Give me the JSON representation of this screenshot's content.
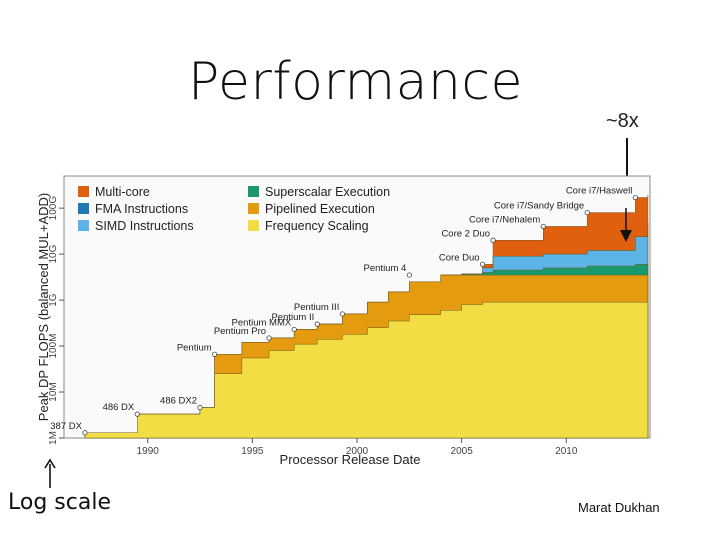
{
  "slide": {
    "title": "Performance",
    "callout": "~8x",
    "scale_note": "Log scale",
    "author": "Marat Dukhan"
  },
  "chart_data": {
    "type": "area",
    "stacked": true,
    "xlabel": "Processor Release Date",
    "ylabel": "Peak DP FLOPS (balanced MUL+ADD)",
    "y_scale": "log",
    "xlim": [
      1986,
      2014
    ],
    "ylim": [
      1000000,
      500000000000
    ],
    "x_ticks": [
      1990,
      1995,
      2000,
      2005,
      2010
    ],
    "y_ticks": [
      {
        "label": "1M",
        "value": 1000000
      },
      {
        "label": "10M",
        "value": 10000000
      },
      {
        "label": "100M",
        "value": 100000000
      },
      {
        "label": "1G",
        "value": 1000000000
      },
      {
        "label": "10G",
        "value": 10000000000
      },
      {
        "label": "100G",
        "value": 100000000000
      }
    ],
    "legend_position": "top-left",
    "legend": [
      {
        "name": "Multi-core",
        "color": "#e0600f"
      },
      {
        "name": "FMA Instructions",
        "color": "#1f78b4"
      },
      {
        "name": "SIMD Instructions",
        "color": "#5cb3e6"
      },
      {
        "name": "Superscalar Execution",
        "color": "#1a9a6c"
      },
      {
        "name": "Pipelined Execution",
        "color": "#e59b0f"
      },
      {
        "name": "Frequency Scaling",
        "color": "#f2dd44"
      }
    ],
    "annotations": [
      {
        "label": "387 DX",
        "x": 1987.0,
        "y": 1300000
      },
      {
        "label": "486 DX",
        "x": 1989.5,
        "y": 3300000
      },
      {
        "label": "486 DX2",
        "x": 1992.5,
        "y": 4600000
      },
      {
        "label": "Pentium",
        "x": 1993.2,
        "y": 66000000
      },
      {
        "label": "Pentium Pro",
        "x": 1995.8,
        "y": 150000000
      },
      {
        "label": "Pentium MMX",
        "x": 1997.0,
        "y": 230000000
      },
      {
        "label": "Pentium II",
        "x": 1998.1,
        "y": 300000000
      },
      {
        "label": "Pentium III",
        "x": 1999.3,
        "y": 500000000
      },
      {
        "label": "Pentium 4",
        "x": 2002.5,
        "y": 3500000000
      },
      {
        "label": "Core Duo",
        "x": 2006.0,
        "y": 6000000000
      },
      {
        "label": "Core 2 Duo",
        "x": 2006.5,
        "y": 20000000000
      },
      {
        "label": "Core i7/Nehalem",
        "x": 2008.9,
        "y": 40000000000
      },
      {
        "label": "Core i7/Sandy Bridge",
        "x": 2011.0,
        "y": 80000000000
      },
      {
        "label": "Core i7/Haswell",
        "x": 2013.3,
        "y": 170000000000
      }
    ],
    "x": [
      1987.0,
      1989.5,
      1992.5,
      1993.2,
      1994.5,
      1995.8,
      1997.0,
      1998.1,
      1999.3,
      2000.5,
      2001.5,
      2002.5,
      2004.0,
      2005.0,
      2006.0,
      2006.5,
      2008.9,
      2011.0,
      2013.3,
      2013.9
    ],
    "series": [
      {
        "name": "Frequency Scaling",
        "values": [
          1300000,
          3300000,
          4600000,
          25000000,
          55000000,
          80000000,
          110000000,
          140000000,
          180000000,
          250000000,
          350000000,
          480000000,
          600000000,
          800000000,
          900000000,
          900000000,
          900000000,
          900000000,
          900000000,
          900000000
        ]
      },
      {
        "name": "Pipelined Execution",
        "values": [
          1300000,
          3300000,
          4600000,
          66000000,
          120000000,
          150000000,
          230000000,
          300000000,
          500000000,
          900000000,
          1500000000,
          2500000000,
          3500000000,
          3500000000,
          3500000000,
          3500000000,
          3500000000,
          3500000000,
          3500000000,
          3500000000
        ]
      },
      {
        "name": "Superscalar Execution",
        "values": [
          1300000,
          3300000,
          4600000,
          66000000,
          120000000,
          150000000,
          230000000,
          300000000,
          500000000,
          900000000,
          1500000000,
          2500000000,
          3500000000,
          3600000000,
          4000000000,
          4500000000,
          5000000000,
          5500000000,
          6000000000,
          6000000000
        ]
      },
      {
        "name": "SIMD Instructions",
        "values": [
          1300000,
          3300000,
          4600000,
          66000000,
          120000000,
          150000000,
          230000000,
          300000000,
          500000000,
          900000000,
          1500000000,
          2500000000,
          3500000000,
          3700000000,
          5000000000,
          9000000000,
          10000000000,
          12000000000,
          24000000000,
          24000000000
        ]
      },
      {
        "name": "FMA Instructions",
        "values": [
          1300000,
          3300000,
          4600000,
          66000000,
          120000000,
          150000000,
          230000000,
          300000000,
          500000000,
          900000000,
          1500000000,
          2500000000,
          3500000000,
          3700000000,
          5000000000,
          9000000000,
          10000000000,
          12000000000,
          24000000000,
          48000000000
        ]
      },
      {
        "name": "Multi-core",
        "values": [
          1300000,
          3300000,
          4600000,
          66000000,
          120000000,
          150000000,
          230000000,
          300000000,
          500000000,
          900000000,
          1500000000,
          2500000000,
          3500000000,
          3700000000,
          6000000000,
          20000000000,
          40000000000,
          80000000000,
          170000000000,
          190000000000
        ]
      }
    ]
  }
}
